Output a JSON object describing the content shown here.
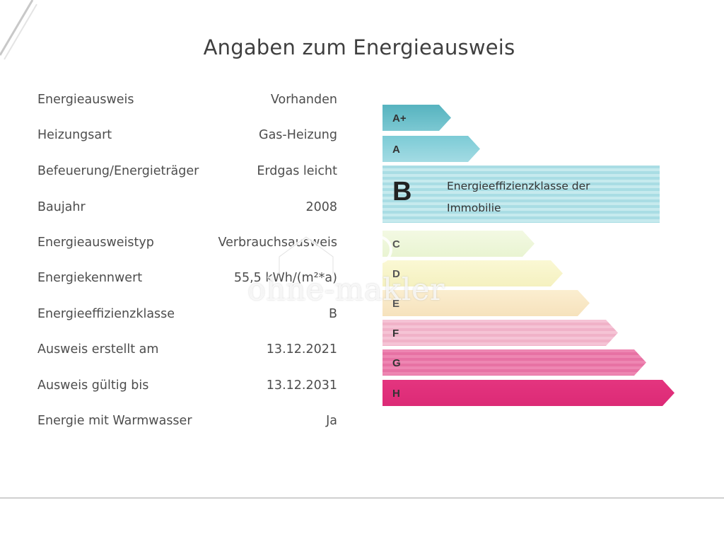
{
  "title": "Angaben zum Energieausweis",
  "details": [
    {
      "label": "Energieausweis",
      "value": "Vorhanden"
    },
    {
      "label": "Heizungsart",
      "value": "Gas-Heizung"
    },
    {
      "label": "Befeuerung/Energieträger",
      "value": "Erdgas leicht"
    },
    {
      "label": "Baujahr",
      "value": "2008"
    },
    {
      "label": "Energieausweistyp",
      "value": "Verbrauchsausweis"
    },
    {
      "label": "Energiekennwert",
      "value": "55,5 kWh/(m²*a)"
    },
    {
      "label": "Energieeffizienzklasse",
      "value": "B"
    },
    {
      "label": "Ausweis erstellt am",
      "value": "13.12.2021"
    },
    {
      "label": "Ausweis gültig bis",
      "value": "13.12.2031"
    },
    {
      "label": "Energie mit Warmwasser",
      "value": "Ja"
    }
  ],
  "scale": {
    "current_class": "B",
    "current_description": "Energieeffizienzklasse der Immobilie",
    "classes": [
      {
        "label": "A+",
        "color": "#5fb8c4"
      },
      {
        "label": "A",
        "color": "#84d0dc"
      },
      {
        "label": "B",
        "color": "#a9dde4"
      },
      {
        "label": "C",
        "color": "#eef6d8"
      },
      {
        "label": "D",
        "color": "#f7f5c8"
      },
      {
        "label": "E",
        "color": "#f8e9c3"
      },
      {
        "label": "F",
        "color": "#f4bfd2"
      },
      {
        "label": "G",
        "color": "#ec7fae"
      },
      {
        "label": "H",
        "color": "#e2307d"
      }
    ]
  },
  "watermark": "ohne-makler"
}
